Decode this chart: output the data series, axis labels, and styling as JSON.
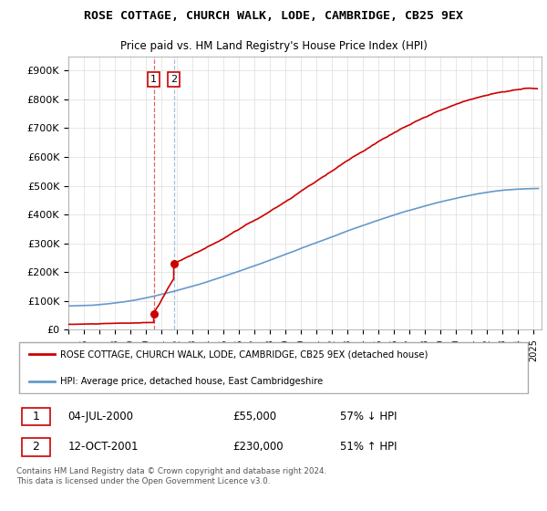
{
  "title": "ROSE COTTAGE, CHURCH WALK, LODE, CAMBRIDGE, CB25 9EX",
  "subtitle": "Price paid vs. HM Land Registry's House Price Index (HPI)",
  "legend_line1": "ROSE COTTAGE, CHURCH WALK, LODE, CAMBRIDGE, CB25 9EX (detached house)",
  "legend_line2": "HPI: Average price, detached house, East Cambridgeshire",
  "footer": "Contains HM Land Registry data © Crown copyright and database right 2024.\nThis data is licensed under the Open Government Licence v3.0.",
  "transaction1_date": "04-JUL-2000",
  "transaction1_price": "£55,000",
  "transaction1_hpi": "57% ↓ HPI",
  "transaction2_date": "12-OCT-2001",
  "transaction2_price": "£230,000",
  "transaction2_hpi": "51% ↑ HPI",
  "sale1_x": 2000.5,
  "sale1_y": 55000,
  "sale2_x": 2001.79,
  "sale2_y": 230000,
  "red_color": "#cc0000",
  "blue_color": "#6699cc",
  "ylim_max": 950000,
  "yticks": [
    0,
    100000,
    200000,
    300000,
    400000,
    500000,
    600000,
    700000,
    800000,
    900000
  ],
  "ytick_labels": [
    "£0",
    "£100K",
    "£200K",
    "£300K",
    "£400K",
    "£500K",
    "£600K",
    "£700K",
    "£800K",
    "£900K"
  ],
  "xtick_start": 1995,
  "xtick_end": 2026
}
